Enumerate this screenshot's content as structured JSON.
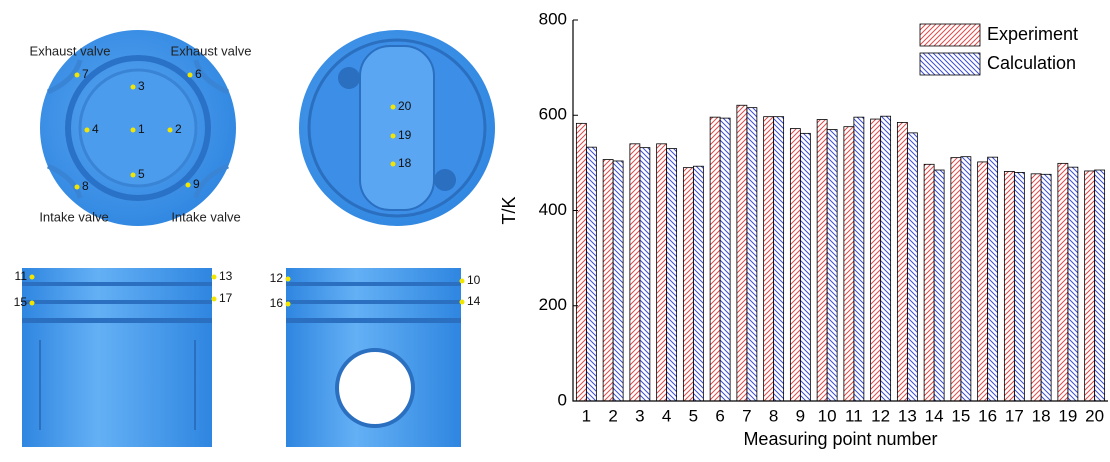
{
  "diagram": {
    "valve_labels": [
      "Exhaust valve",
      "Exhaust valve",
      "Intake valve",
      "Intake valve"
    ],
    "points": [
      "1",
      "2",
      "3",
      "4",
      "5",
      "6",
      "7",
      "8",
      "9",
      "20",
      "19",
      "18",
      "11",
      "13",
      "15",
      "17",
      "12",
      "10",
      "16",
      "14"
    ]
  },
  "chart_data": {
    "type": "bar",
    "x_label": "Measuring point number",
    "y_label": "T/K",
    "categories": [
      "1",
      "2",
      "3",
      "4",
      "5",
      "6",
      "7",
      "8",
      "9",
      "10",
      "11",
      "12",
      "13",
      "14",
      "15",
      "16",
      "17",
      "18",
      "19",
      "20"
    ],
    "series": [
      {
        "name": "Experiment",
        "color": "#e04a4a",
        "values": [
          583,
          507,
          540,
          540,
          490,
          596,
          621,
          597,
          572,
          591,
          576,
          592,
          585,
          497,
          511,
          502,
          482,
          477,
          499,
          483
        ]
      },
      {
        "name": "Calculation",
        "color": "#3d4fd6",
        "values": [
          533,
          504,
          532,
          530,
          493,
          594,
          616,
          597,
          562,
          570,
          596,
          598,
          563,
          485,
          513,
          512,
          480,
          476,
          491,
          485
        ]
      }
    ],
    "ylim": [
      0,
      800
    ],
    "yticks": [
      0,
      200,
      400,
      600,
      800
    ],
    "legend": "upper right"
  }
}
